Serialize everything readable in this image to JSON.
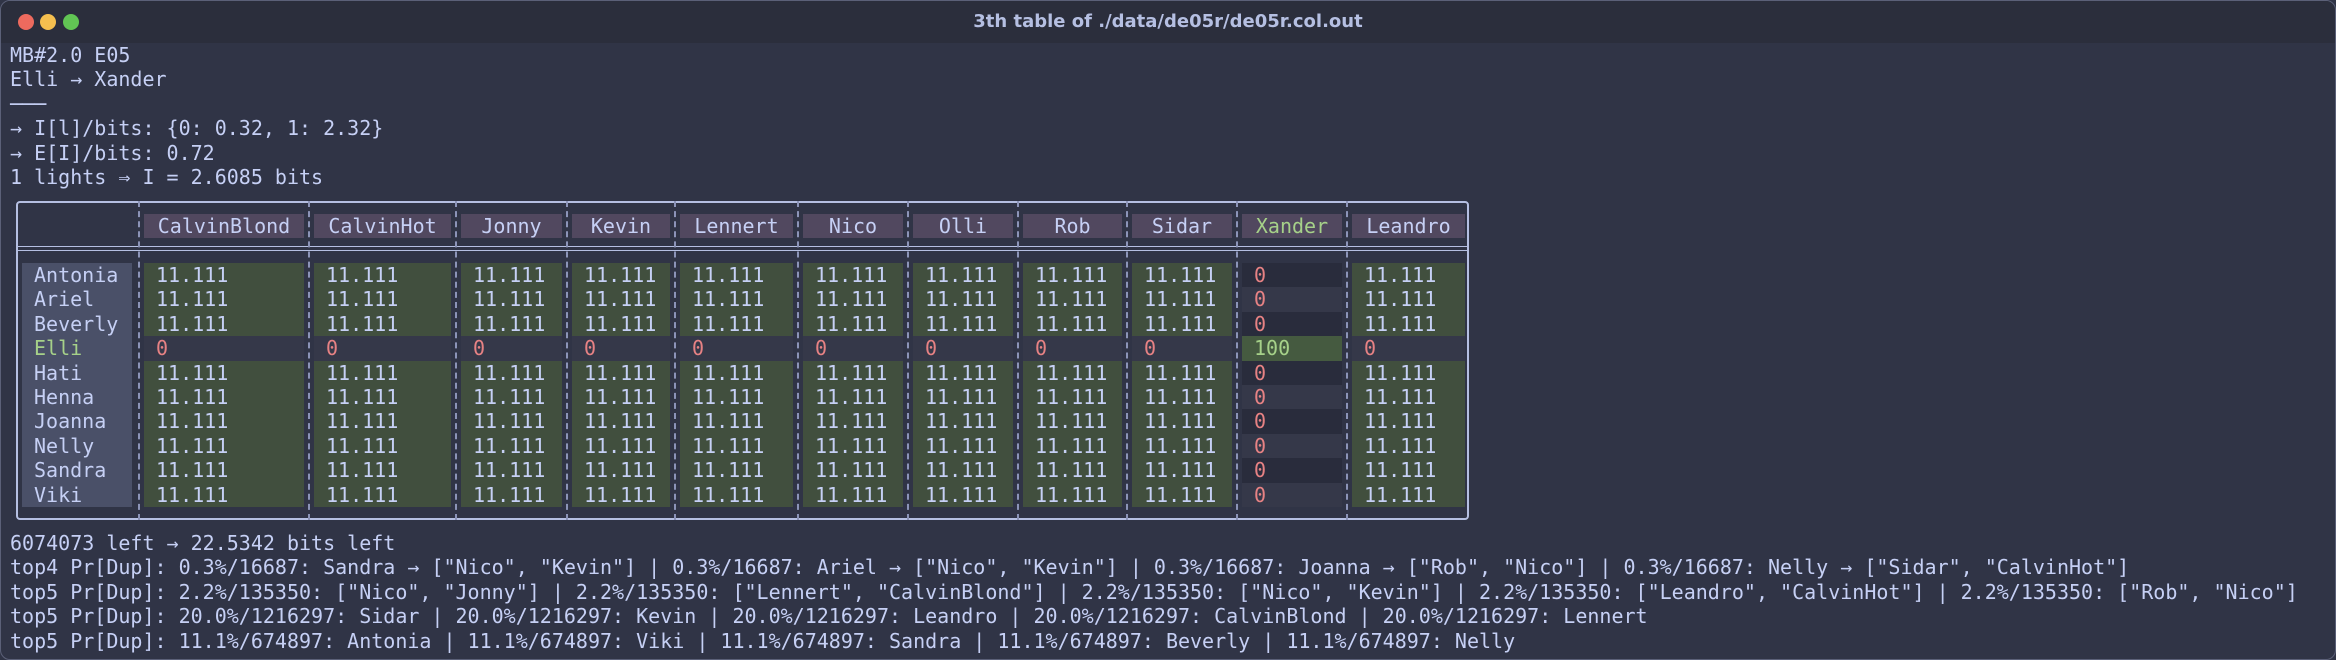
{
  "window": {
    "title": "3th table of ./data/de05r/de05r.col.out"
  },
  "header": {
    "lines": [
      "MB#2.0 E05",
      "Elli → Xander",
      "───",
      "→ I[l]/bits: {0: 0.32, 1: 2.32}",
      "→ E[I]/bits: 0.72",
      "1 lights ⇒ I = 2.6085 bits"
    ]
  },
  "table": {
    "columns": [
      "CalvinBlond",
      "CalvinHot",
      "Jonny",
      "Kevin",
      "Lennert",
      "Nico",
      "Olli",
      "Rob",
      "Sidar",
      "Xander",
      "Leandro"
    ],
    "rows": [
      {
        "name": "Antonia",
        "cells": [
          11.111,
          11.111,
          11.111,
          11.111,
          11.111,
          11.111,
          11.111,
          11.111,
          11.111,
          0,
          11.111
        ]
      },
      {
        "name": "Ariel",
        "cells": [
          11.111,
          11.111,
          11.111,
          11.111,
          11.111,
          11.111,
          11.111,
          11.111,
          11.111,
          0,
          11.111
        ]
      },
      {
        "name": "Beverly",
        "cells": [
          11.111,
          11.111,
          11.111,
          11.111,
          11.111,
          11.111,
          11.111,
          11.111,
          11.111,
          0,
          11.111
        ]
      },
      {
        "name": "Elli",
        "cells": [
          0,
          0,
          0,
          0,
          0,
          0,
          0,
          0,
          0,
          100,
          0
        ]
      },
      {
        "name": "Hati",
        "cells": [
          11.111,
          11.111,
          11.111,
          11.111,
          11.111,
          11.111,
          11.111,
          11.111,
          11.111,
          0,
          11.111
        ]
      },
      {
        "name": "Henna",
        "cells": [
          11.111,
          11.111,
          11.111,
          11.111,
          11.111,
          11.111,
          11.111,
          11.111,
          11.111,
          0,
          11.111
        ]
      },
      {
        "name": "Joanna",
        "cells": [
          11.111,
          11.111,
          11.111,
          11.111,
          11.111,
          11.111,
          11.111,
          11.111,
          11.111,
          0,
          11.111
        ]
      },
      {
        "name": "Nelly",
        "cells": [
          11.111,
          11.111,
          11.111,
          11.111,
          11.111,
          11.111,
          11.111,
          11.111,
          11.111,
          0,
          11.111
        ]
      },
      {
        "name": "Sandra",
        "cells": [
          11.111,
          11.111,
          11.111,
          11.111,
          11.111,
          11.111,
          11.111,
          11.111,
          11.111,
          0,
          11.111
        ]
      },
      {
        "name": "Viki",
        "cells": [
          11.111,
          11.111,
          11.111,
          11.111,
          11.111,
          11.111,
          11.111,
          11.111,
          11.111,
          0,
          11.111
        ]
      }
    ]
  },
  "footer": {
    "lines": [
      "6074073 left → 22.5342 bits left",
      "top4 Pr[Dup]: 0.3%/16687: Sandra → [\"Nico\", \"Kevin\"] | 0.3%/16687: Ariel → [\"Nico\", \"Kevin\"] | 0.3%/16687: Joanna → [\"Rob\", \"Nico\"] | 0.3%/16687: Nelly → [\"Sidar\", \"CalvinHot\"]",
      "top5 Pr[Dup]: 2.2%/135350: [\"Nico\", \"Jonny\"] | 2.2%/135350: [\"Lennert\", \"CalvinBlond\"] | 2.2%/135350: [\"Nico\", \"Kevin\"] | 2.2%/135350: [\"Leandro\", \"CalvinHot\"] | 2.2%/135350: [\"Rob\", \"Nico\"]",
      "top5 Pr[Dup]: 20.0%/1216297: Sidar | 20.0%/1216297: Kevin | 20.0%/1216297: Leandro | 20.0%/1216297: CalvinBlond | 20.0%/1216297: Lennert",
      "top5 Pr[Dup]: 11.1%/674897: Antonia | 11.1%/674897: Viki | 11.1%/674897: Sandra | 11.1%/674897: Beverly | 11.1%/674897: Nelly"
    ]
  }
}
